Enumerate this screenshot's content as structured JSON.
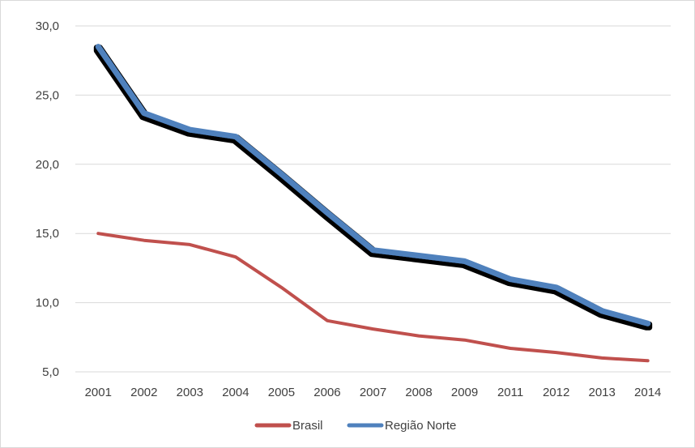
{
  "chart_data": {
    "type": "line",
    "title": "",
    "xlabel": "",
    "ylabel": "",
    "categories": [
      "2001",
      "2002",
      "2003",
      "2004",
      "2005",
      "2006",
      "2007",
      "2008",
      "2009",
      "2011",
      "2012",
      "2013",
      "2014"
    ],
    "ylim": [
      5.0,
      30.0
    ],
    "yticks": [
      "5,0",
      "10,0",
      "15,0",
      "20,0",
      "25,0",
      "30,0"
    ],
    "grid": true,
    "legend_position": "bottom",
    "series": [
      {
        "name": "Brasil",
        "color": "#c0504d",
        "values": [
          15.0,
          14.5,
          14.2,
          13.3,
          11.1,
          8.7,
          8.1,
          7.6,
          7.3,
          6.7,
          6.4,
          6.0,
          5.8
        ]
      },
      {
        "name": "Região Norte",
        "color": "#4f81bd",
        "values": [
          28.5,
          23.7,
          22.5,
          22.0,
          19.3,
          16.5,
          13.8,
          13.4,
          13.0,
          11.7,
          11.1,
          9.4,
          8.5
        ]
      }
    ]
  }
}
